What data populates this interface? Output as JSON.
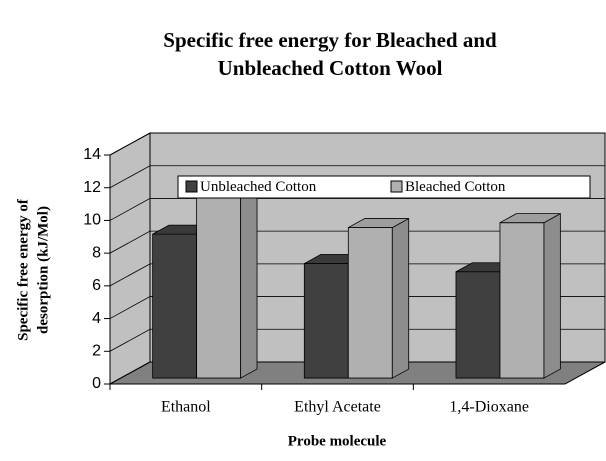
{
  "chart_data": {
    "type": "bar3d",
    "title": "Specific free energy for Bleached and",
    "subtitle": "Unbleached Cotton Wool",
    "y_label": "Specific free energy of",
    "y_label2": "desorption (kJ/Mol)",
    "x_label": "Probe molecule",
    "categories": [
      "Ethanol",
      "Ethyl Acetate",
      "1,4-Dioxane"
    ],
    "series": [
      {
        "name": "Unbleached Cotton",
        "color": "#404040",
        "values": [
          8.8,
          7.0,
          6.5
        ]
      },
      {
        "name": "Bleached Cotton",
        "color": "#b0b0b0",
        "values": [
          11.7,
          9.2,
          9.5
        ]
      }
    ],
    "ylim": [
      0,
      14
    ],
    "yticks": [
      0,
      2,
      4,
      6,
      8,
      10,
      12,
      14
    ],
    "grid": true,
    "legend": "top"
  }
}
